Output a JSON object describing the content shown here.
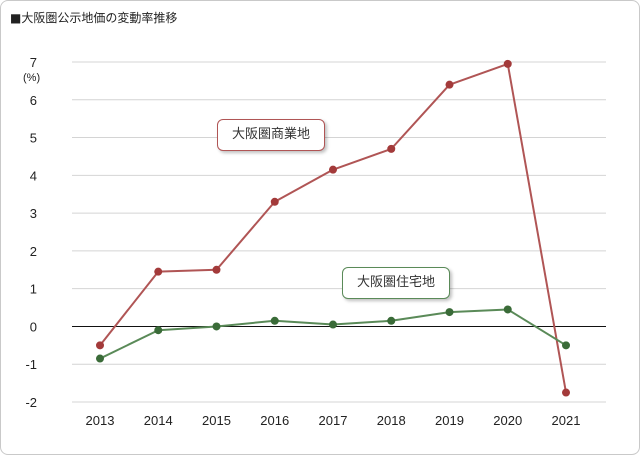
{
  "title": "■大阪圏公示地価の変動率推移",
  "chart_data": {
    "type": "line",
    "categories": [
      "2013",
      "2014",
      "2015",
      "2016",
      "2017",
      "2018",
      "2019",
      "2020",
      "2021"
    ],
    "ylabel": "(%)",
    "ylim": [
      -2,
      7
    ],
    "yticks": [
      "7",
      "6",
      "5",
      "4",
      "3",
      "2",
      "1",
      "0",
      "-1",
      "-2"
    ],
    "grid": true,
    "series": [
      {
        "name": "大阪圏商業地",
        "color": "#b05555",
        "marker_color": "#a33a3a",
        "values": [
          -0.5,
          1.45,
          1.5,
          3.3,
          4.15,
          4.7,
          6.4,
          6.95,
          -1.75
        ]
      },
      {
        "name": "大阪圏住宅地",
        "color": "#5a8a58",
        "marker_color": "#3a6b38",
        "values": [
          -0.85,
          -0.1,
          0.0,
          0.15,
          0.05,
          0.15,
          0.38,
          0.45,
          -0.5
        ]
      }
    ]
  }
}
